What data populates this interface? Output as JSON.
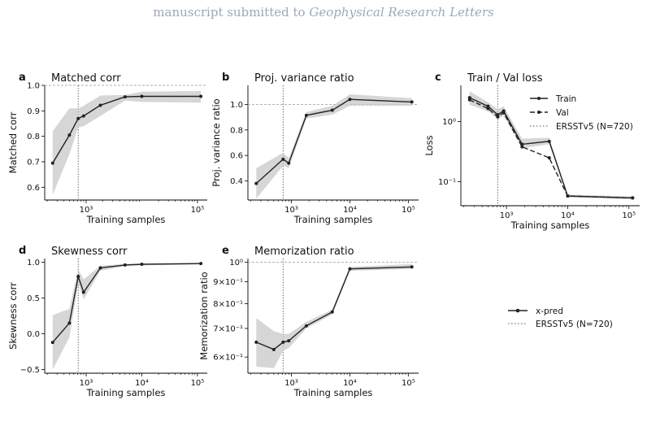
{
  "header": {
    "prefix": "manuscript submitted to",
    "journal": "Geophysical Research Letters"
  },
  "colors": {
    "line": "#222222",
    "band": "#c8c8c8",
    "ref": "#999999",
    "header": "#9aa9b9"
  },
  "chart_data": [
    {
      "id": "a",
      "letter": "a",
      "type": "line",
      "title": "Matched corr",
      "xlabel": "Training samples",
      "ylabel": "Matched corr",
      "xscale": "log",
      "xlim": [
        180,
        150000
      ],
      "ylim": [
        0.55,
        1.0
      ],
      "yticks": [
        0.6,
        0.7,
        0.8,
        0.9,
        1.0
      ],
      "ytick_labels": [
        "0.6",
        "0.7",
        "0.8",
        "0.9",
        "1.0"
      ],
      "xticks": [
        1000,
        100000
      ],
      "xtick_labels": [
        "10³",
        "10⁵"
      ],
      "hline": 1.0,
      "vline": 720,
      "series": [
        {
          "x": [
            250,
            500,
            720,
            900,
            1800,
            5000,
            10000,
            115000
          ],
          "y": [
            0.695,
            0.805,
            0.87,
            0.88,
            0.922,
            0.955,
            0.957,
            0.957
          ],
          "lower": [
            0.57,
            0.73,
            0.835,
            0.84,
            0.88,
            0.94,
            0.935,
            0.932
          ],
          "upper": [
            0.82,
            0.91,
            0.91,
            0.92,
            0.96,
            0.962,
            0.975,
            0.978
          ],
          "style": "solid"
        }
      ]
    },
    {
      "id": "b",
      "letter": "b",
      "type": "line",
      "title": "Proj. variance ratio",
      "xlabel": "Training samples",
      "ylabel": "Proj. variance ratio",
      "xscale": "log",
      "xlim": [
        180,
        150000
      ],
      "ylim": [
        0.25,
        1.15
      ],
      "yticks": [
        0.4,
        0.6,
        0.8,
        1.0
      ],
      "ytick_labels": [
        "0.4",
        "0.6",
        "0.8",
        "1.0"
      ],
      "xticks": [
        1000,
        10000,
        100000
      ],
      "xtick_labels": [
        "10³",
        "10⁴",
        "10⁵"
      ],
      "hline": 1.0,
      "vline": 720,
      "series": [
        {
          "x": [
            250,
            720,
            900,
            1800,
            5000,
            10000,
            115000
          ],
          "y": [
            0.38,
            0.57,
            0.54,
            0.915,
            0.955,
            1.04,
            1.02
          ],
          "lower": [
            0.26,
            0.52,
            0.5,
            0.89,
            0.92,
            0.99,
            0.99
          ],
          "upper": [
            0.5,
            0.62,
            0.58,
            0.94,
            0.99,
            1.08,
            1.05
          ],
          "style": "solid"
        }
      ]
    },
    {
      "id": "c",
      "letter": "c",
      "type": "line",
      "title": "Train / Val loss",
      "xlabel": "Training samples",
      "ylabel": "Loss",
      "xscale": "log",
      "yscale": "log",
      "xlim": [
        180,
        150000
      ],
      "ylim": [
        0.04,
        4.0
      ],
      "yticks": [
        0.1,
        1.0
      ],
      "ytick_labels": [
        "10⁻¹",
        "10⁰"
      ],
      "xticks": [
        1000,
        10000,
        100000
      ],
      "xtick_labels": [
        "10³",
        "10⁴",
        "10⁵"
      ],
      "vline": 720,
      "legend": {
        "placement": "upper-right",
        "entries": [
          {
            "label": "Train",
            "style": "solid"
          },
          {
            "label": "Val",
            "style": "dashed"
          },
          {
            "label": "ERSSTv5 (N=720)",
            "style": "dotted"
          }
        ]
      },
      "series": [
        {
          "name": "Train",
          "style": "solid",
          "x": [
            250,
            500,
            720,
            900,
            1800,
            5000,
            10000,
            115000
          ],
          "y": [
            2.5,
            1.8,
            1.3,
            1.5,
            0.42,
            0.47,
            0.058,
            0.054
          ],
          "lower": [
            1.9,
            1.5,
            1.1,
            1.25,
            0.36,
            0.42,
            0.055,
            0.051
          ],
          "upper": [
            3.2,
            2.1,
            1.6,
            1.8,
            0.52,
            0.54,
            0.061,
            0.057
          ]
        },
        {
          "name": "Val",
          "style": "dashed",
          "x": [
            250,
            500,
            720,
            900,
            1800,
            5000,
            10000,
            115000
          ],
          "y": [
            2.3,
            1.65,
            1.2,
            1.4,
            0.38,
            0.25,
            0.058,
            0.054
          ]
        }
      ]
    },
    {
      "id": "d",
      "letter": "d",
      "type": "line",
      "title": "Skewness corr",
      "xlabel": "Training samples",
      "ylabel": "Skewness corr",
      "xscale": "log",
      "xlim": [
        180,
        150000
      ],
      "ylim": [
        -0.55,
        1.05
      ],
      "yticks": [
        -0.5,
        0.0,
        0.5,
        1.0
      ],
      "ytick_labels": [
        "−0.5",
        "0.0",
        "0.5",
        "1.0"
      ],
      "xticks": [
        1000,
        10000,
        100000
      ],
      "xtick_labels": [
        "10³",
        "10⁴",
        "10⁵"
      ],
      "vline": 720,
      "series": [
        {
          "x": [
            250,
            500,
            720,
            900,
            1800,
            5000,
            10000,
            115000
          ],
          "y": [
            -0.12,
            0.15,
            0.8,
            0.58,
            0.92,
            0.96,
            0.97,
            0.98
          ],
          "lower": [
            -0.5,
            -0.05,
            0.7,
            0.48,
            0.88,
            0.945,
            0.955,
            0.97
          ],
          "upper": [
            0.26,
            0.35,
            0.9,
            0.76,
            0.95,
            0.975,
            0.985,
            0.99
          ],
          "style": "solid"
        }
      ]
    },
    {
      "id": "e",
      "letter": "e",
      "type": "line",
      "title": "Memorization ratio",
      "xlabel": "Training samples",
      "ylabel": "Memorization ratio",
      "xscale": "log",
      "yscale": "log",
      "xlim": [
        180,
        150000
      ],
      "ylim": [
        0.55,
        1.02
      ],
      "yticks": [
        0.6,
        0.7,
        0.8,
        0.9,
        1.0
      ],
      "ytick_labels": [
        "6×10⁻¹",
        "7×10⁻¹",
        "8×10⁻¹",
        "9×10⁻¹",
        "10⁰"
      ],
      "xticks": [
        1000,
        10000,
        100000
      ],
      "xtick_labels": [
        "10³",
        "10⁴",
        "10⁵"
      ],
      "hline": 1.0,
      "vline": 720,
      "series": [
        {
          "x": [
            250,
            500,
            720,
            900,
            1800,
            5000,
            10000,
            115000
          ],
          "y": [
            0.65,
            0.625,
            0.65,
            0.655,
            0.71,
            0.765,
            0.965,
            0.975
          ],
          "lower": [
            0.57,
            0.565,
            0.62,
            0.63,
            0.7,
            0.755,
            0.955,
            0.965
          ],
          "upper": [
            0.74,
            0.69,
            0.68,
            0.68,
            0.725,
            0.775,
            0.975,
            0.99
          ],
          "style": "solid"
        }
      ]
    }
  ],
  "figure_legend": {
    "entries": [
      {
        "label": "x-pred",
        "style": "solid"
      },
      {
        "label": "ERSSTv5 (N=720)",
        "style": "dotted"
      }
    ]
  }
}
